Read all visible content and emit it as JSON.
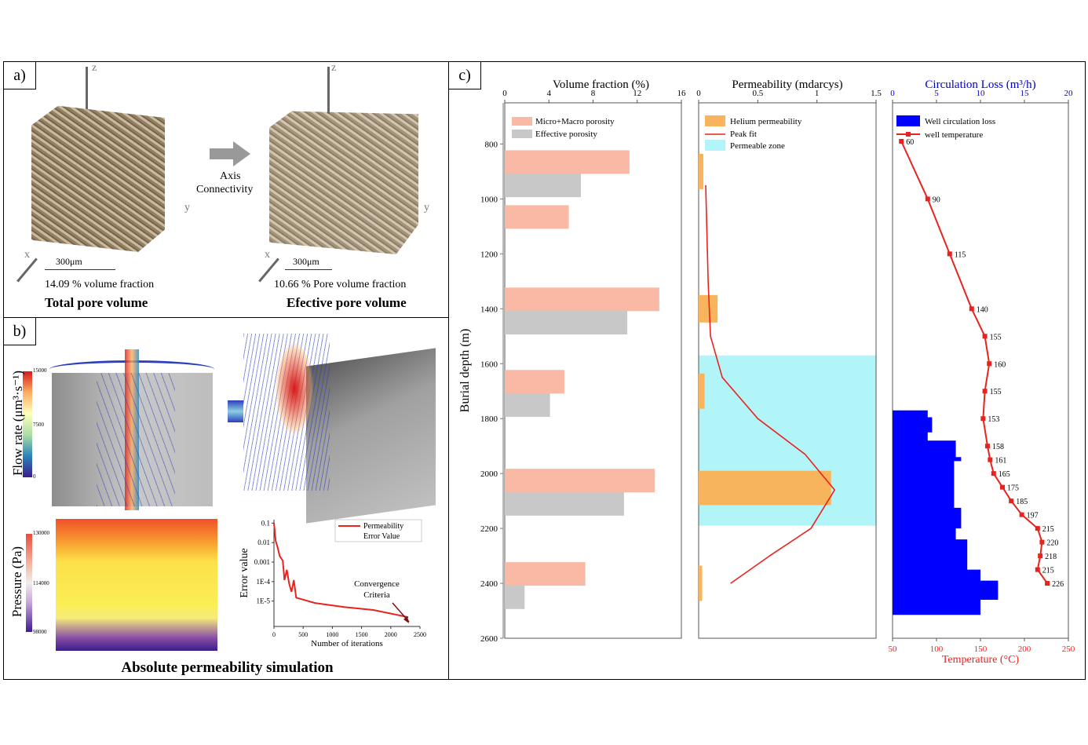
{
  "panel_a": {
    "label": "a)",
    "left": {
      "caption": "14.09 % volume fraction",
      "title": "Total pore volume",
      "scale": "300μm"
    },
    "right": {
      "caption": "10.66 %  Pore volume fraction",
      "title": "Efective pore volume",
      "scale": "300μm"
    },
    "arrow_text_1": "Axis",
    "arrow_text_2": "Connectivity",
    "axes": {
      "x": "x",
      "y": "y",
      "z": "z"
    }
  },
  "panel_b": {
    "label": "b)",
    "flow_label": "Flow rate (μm³·s⁻¹)",
    "flow_ticks": [
      "15000",
      "7500",
      "0"
    ],
    "pressure_label": "Pressure (Pa)",
    "pressure_ticks": [
      "130000",
      "114000",
      "98000"
    ],
    "caption": "Absolute permeability simulation"
  },
  "panel_c": {
    "label": "c)"
  },
  "chart_data": [
    {
      "type": "bar",
      "title": "Volume fraction (%)",
      "ylabel": "Burial depth (m)",
      "orientation": "horizontal",
      "xlim": [
        0,
        16
      ],
      "xticks": [
        0,
        4,
        8,
        12,
        16
      ],
      "ylim": [
        2600,
        650
      ],
      "yticks": [
        800,
        1000,
        1200,
        1400,
        1600,
        1800,
        2000,
        2200,
        2400,
        2600
      ],
      "legend": "top-left",
      "series": [
        {
          "name": "Micro+Macro porosity",
          "color": "#f9b9a4",
          "bars": [
            {
              "depth": 860,
              "value": 11.3
            },
            {
              "depth": 1060,
              "value": 5.8
            },
            {
              "depth": 1360,
              "value": 14.0
            },
            {
              "depth": 1660,
              "value": 5.4
            },
            {
              "depth": 2020,
              "value": 13.6
            },
            {
              "depth": 2360,
              "value": 7.3
            }
          ]
        },
        {
          "name": "Effective porosity",
          "color": "#c8c8c8",
          "bars": [
            {
              "depth": 945,
              "value": 6.9
            },
            {
              "depth": 1445,
              "value": 11.1
            },
            {
              "depth": 1745,
              "value": 4.1
            },
            {
              "depth": 2105,
              "value": 10.8
            },
            {
              "depth": 2445,
              "value": 1.8
            }
          ]
        }
      ]
    },
    {
      "type": "bar",
      "title": "Permeability (mdarcys)",
      "orientation": "horizontal",
      "xlim": [
        0,
        1.5
      ],
      "xticks": [
        "0",
        "0.5",
        "1",
        "1.5"
      ],
      "ylim": [
        2600,
        650
      ],
      "legend": "top-left",
      "series": [
        {
          "name": "Helium permeability",
          "color": "#f8b45c",
          "bars": [
            {
              "depth": 900,
              "value": 0.04,
              "height": 120
            },
            {
              "depth": 1400,
              "value": 0.16,
              "height": 120
            },
            {
              "depth": 1700,
              "value": 0.05,
              "height": 120
            },
            {
              "depth": 2060,
              "value": 1.12,
              "height": 120
            },
            {
              "depth": 2400,
              "value": 0.03,
              "height": 120
            }
          ]
        },
        {
          "name": "Peak fit",
          "color": "#e8231e",
          "type": "line",
          "points": [
            [
              0.06,
              950
            ],
            [
              0.08,
              1300
            ],
            [
              0.1,
              1500
            ],
            [
              0.2,
              1650
            ],
            [
              0.5,
              1800
            ],
            [
              0.9,
              1930
            ],
            [
              1.15,
              2060
            ],
            [
              0.95,
              2200
            ],
            [
              0.6,
              2300
            ],
            [
              0.27,
              2400
            ]
          ]
        },
        {
          "name": "Permeable zone",
          "color": "#b2f5f8",
          "type": "band",
          "from": 1570,
          "to": 2190
        }
      ]
    },
    {
      "type": "bar",
      "title": "Circulation Loss (m³/h)",
      "xlabel": "Temperature (°C)",
      "orientation": "horizontal",
      "xlim": [
        0,
        20
      ],
      "xticks": [
        0,
        5,
        10,
        15,
        20
      ],
      "x2lim": [
        50,
        250
      ],
      "x2ticks": [
        50,
        100,
        150,
        200,
        250
      ],
      "ylim": [
        2600,
        650
      ],
      "legend": "top-left",
      "series": [
        {
          "name": "Well circulation loss",
          "color": "#0000ff",
          "steps": [
            [
              1770,
              4.0
            ],
            [
              1795,
              4.5
            ],
            [
              1850,
              4.0
            ],
            [
              1880,
              7.2
            ],
            [
              1940,
              7.8
            ],
            [
              1955,
              7.0
            ],
            [
              2125,
              7.8
            ],
            [
              2200,
              7.2
            ],
            [
              2240,
              8.5
            ],
            [
              2350,
              10.0
            ],
            [
              2390,
              12.0
            ],
            [
              2460,
              10.0
            ],
            [
              2515,
              10.0
            ]
          ]
        },
        {
          "name": "well  temperature",
          "color": "#e8231e",
          "type": "line",
          "points": [
            {
              "depth": 790,
              "temp": 60
            },
            {
              "depth": 1000,
              "temp": 90
            },
            {
              "depth": 1200,
              "temp": 115
            },
            {
              "depth": 1400,
              "temp": 140
            },
            {
              "depth": 1500,
              "temp": 155
            },
            {
              "depth": 1600,
              "temp": 160
            },
            {
              "depth": 1700,
              "temp": 155
            },
            {
              "depth": 1800,
              "temp": 153
            },
            {
              "depth": 1900,
              "temp": 158
            },
            {
              "depth": 1950,
              "temp": 161
            },
            {
              "depth": 2000,
              "temp": 165
            },
            {
              "depth": 2050,
              "temp": 175
            },
            {
              "depth": 2100,
              "temp": 185
            },
            {
              "depth": 2150,
              "temp": 197
            },
            {
              "depth": 2200,
              "temp": 215
            },
            {
              "depth": 2250,
              "temp": 220
            },
            {
              "depth": 2300,
              "temp": 218
            },
            {
              "depth": 2350,
              "temp": 215
            },
            {
              "depth": 2400,
              "temp": 226
            }
          ]
        }
      ]
    },
    {
      "type": "line",
      "xlabel": "Number of iterations",
      "ylabel": "Error value",
      "xlim": [
        0,
        2500
      ],
      "xticks": [
        "0",
        "500",
        "1000",
        "1500",
        "2000",
        "2500"
      ],
      "yscale": "log",
      "ylim": [
        5e-07,
        0.15
      ],
      "yticks": [
        "0.1",
        "0.01",
        "0.001",
        "1E-4",
        "1E-5"
      ],
      "legend": "top-right",
      "annotation": "Convergence\nCriteria",
      "series": [
        {
          "name": "Permeability\nError Value",
          "color": "#e8231e",
          "points": [
            [
              0,
              0.1
            ],
            [
              30,
              0.012
            ],
            [
              60,
              0.006
            ],
            [
              100,
              0.002
            ],
            [
              150,
              0.0012
            ],
            [
              180,
              0.00012
            ],
            [
              220,
              0.0004
            ],
            [
              260,
              8e-05
            ],
            [
              300,
              3e-05
            ],
            [
              340,
              0.00012
            ],
            [
              380,
              1.5e-05
            ],
            [
              700,
              8e-06
            ],
            [
              1200,
              5e-06
            ],
            [
              1700,
              3.5e-06
            ],
            [
              2300,
              1.5e-06
            ]
          ]
        }
      ]
    }
  ]
}
